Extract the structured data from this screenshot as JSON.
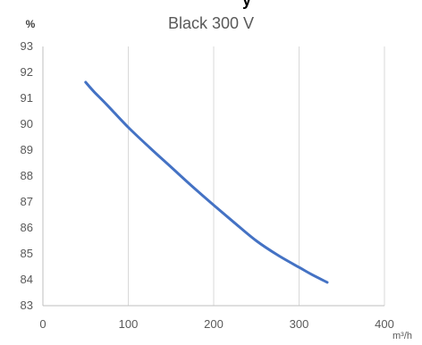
{
  "chart_data": {
    "type": "line",
    "title": "",
    "title_partial": "y",
    "subtitle": "Black 300 V",
    "ylabel": "%",
    "xlabel": "m³/h",
    "xlim": [
      0,
      400
    ],
    "ylim": [
      83,
      93
    ],
    "x_ticks": [
      "0",
      "100",
      "200",
      "300",
      "400"
    ],
    "y_ticks": [
      "83",
      "84",
      "85",
      "86",
      "87",
      "88",
      "89",
      "90",
      "91",
      "92",
      "93"
    ],
    "grid": "vertical",
    "line_color": "#4472C4",
    "series": [
      {
        "x": [
          50,
          60,
          75,
          100,
          125,
          150,
          175,
          200,
          225,
          250,
          275,
          300,
          315,
          333
        ],
        "values": [
          91.62,
          91.25,
          90.75,
          89.88,
          89.1,
          88.35,
          87.6,
          86.88,
          86.18,
          85.5,
          84.95,
          84.48,
          84.2,
          83.9
        ]
      }
    ]
  }
}
